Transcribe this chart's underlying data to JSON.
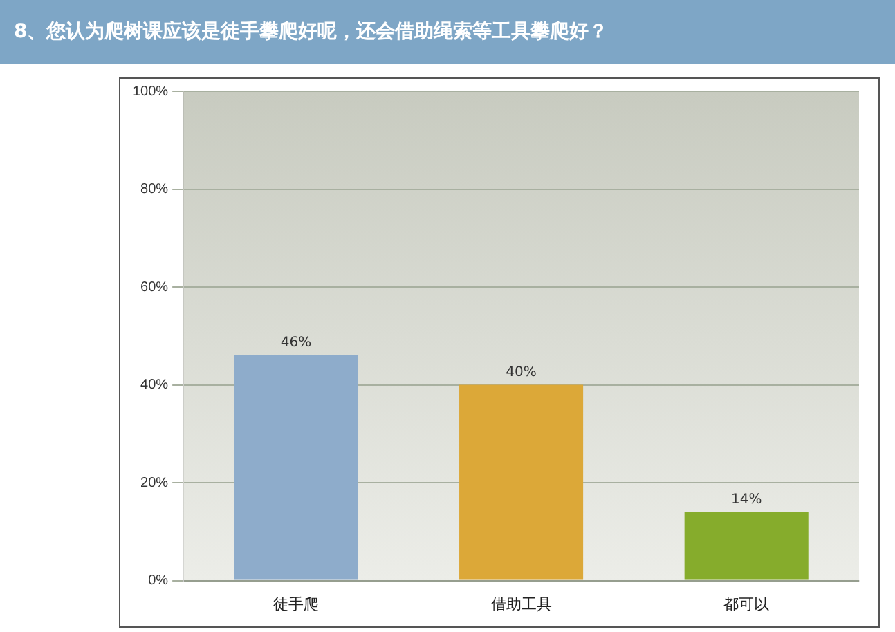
{
  "chart_data": {
    "type": "bar",
    "title": "8、您认为爬树课应该是徒手攀爬好呢，还会借助绳索等工具攀爬好？",
    "categories": [
      "徒手爬",
      "借助工具",
      "都可以"
    ],
    "values": [
      46,
      40,
      14
    ],
    "colors": [
      "#8eaccb",
      "#dca838",
      "#86ac2c"
    ],
    "ylim": [
      0,
      100
    ],
    "yticks": [
      {
        "value": 0,
        "label": "0%"
      },
      {
        "value": 20,
        "label": "20%"
      },
      {
        "value": 40,
        "label": "40%"
      },
      {
        "value": 60,
        "label": "60%"
      },
      {
        "value": 80,
        "label": "80%"
      },
      {
        "value": 100,
        "label": "100%"
      }
    ],
    "value_labels": [
      "46%",
      "40%",
      "14%"
    ],
    "grid": "y",
    "legend": false
  }
}
